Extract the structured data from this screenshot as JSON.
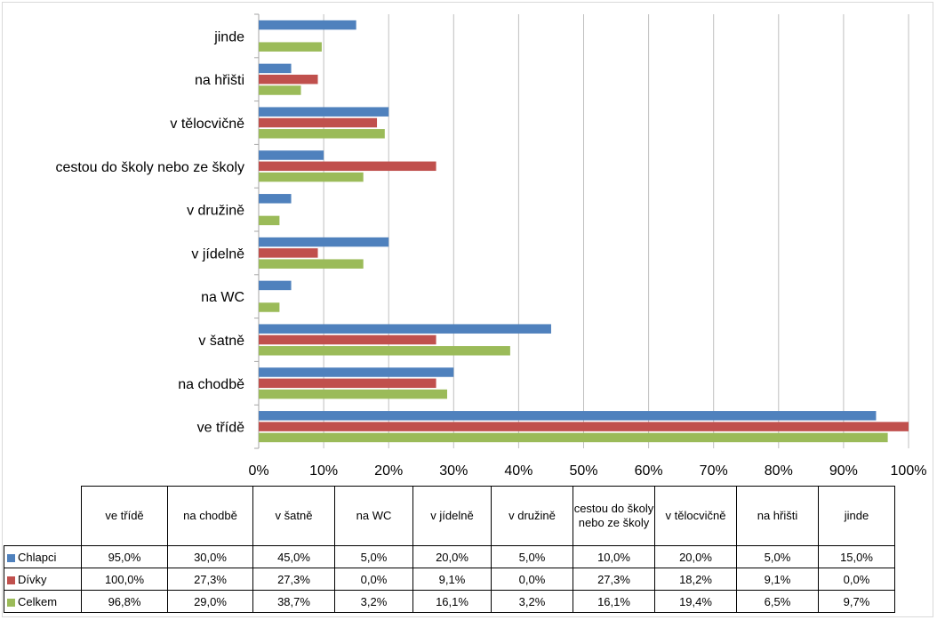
{
  "chart_data": {
    "type": "bar",
    "orientation": "horizontal",
    "categories": [
      "ve třídě",
      "na chodbě",
      "v šatně",
      "na WC",
      "v jídelně",
      "v družině",
      "cestou do školy nebo ze školy",
      "v tělocvičně",
      "na hřišti",
      "jinde"
    ],
    "series": [
      {
        "name": "Chlapci",
        "color": "#4f81bd",
        "values": [
          95.0,
          30.0,
          45.0,
          5.0,
          20.0,
          5.0,
          10.0,
          20.0,
          5.0,
          15.0
        ],
        "labels": [
          "95,0%",
          "30,0%",
          "45,0%",
          "5,0%",
          "20,0%",
          "5,0%",
          "10,0%",
          "20,0%",
          "5,0%",
          "15,0%"
        ]
      },
      {
        "name": "Dívky",
        "color": "#c0504d",
        "values": [
          100.0,
          27.3,
          27.3,
          0.0,
          9.1,
          0.0,
          27.3,
          18.2,
          9.1,
          0.0
        ],
        "labels": [
          "100,0%",
          "27,3%",
          "27,3%",
          "0,0%",
          "9,1%",
          "0,0%",
          "27,3%",
          "18,2%",
          "9,1%",
          "0,0%"
        ]
      },
      {
        "name": "Celkem",
        "color": "#9bbb59",
        "values": [
          96.8,
          29.0,
          38.7,
          3.2,
          16.1,
          3.2,
          16.1,
          19.4,
          6.5,
          9.7
        ],
        "labels": [
          "96,8%",
          "29,0%",
          "38,7%",
          "3,2%",
          "16,1%",
          "3,2%",
          "16,1%",
          "19,4%",
          "6,5%",
          "9,7%"
        ]
      }
    ],
    "xlim": [
      0,
      100
    ],
    "x_ticks": [
      "0%",
      "10%",
      "20%",
      "30%",
      "40%",
      "50%",
      "60%",
      "70%",
      "80%",
      "90%",
      "100%"
    ],
    "grid": true,
    "legend": "data table below chart"
  }
}
